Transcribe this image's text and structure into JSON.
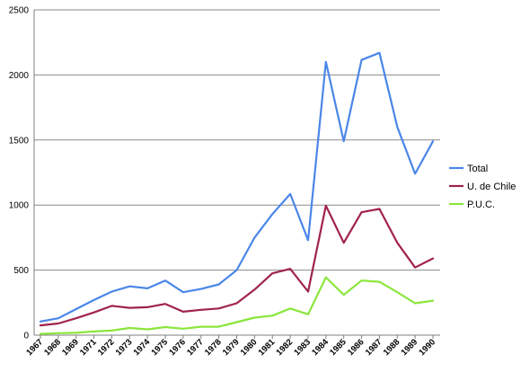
{
  "chart_data": {
    "type": "line",
    "title": "",
    "xlabel": "",
    "ylabel": "",
    "categories": [
      "1967",
      "1968",
      "1969",
      "1971",
      "1972",
      "1973",
      "1974",
      "1975",
      "1976",
      "1977",
      "1978",
      "1979",
      "1980",
      "1981",
      "1982",
      "1983",
      "1984",
      "1985",
      "1986",
      "1987",
      "1988",
      "1989",
      "1990"
    ],
    "ylim": [
      0,
      2500
    ],
    "yticks": [
      0,
      500,
      1000,
      1500,
      2000,
      2500
    ],
    "grid": "horizontal",
    "legend_position": "right",
    "series": [
      {
        "name": "Total",
        "color": "#4a86e8",
        "values": [
          105,
          130,
          200,
          270,
          335,
          375,
          360,
          420,
          330,
          355,
          390,
          500,
          750,
          930,
          1085,
          730,
          2100,
          1490,
          2115,
          2170,
          1600,
          1240,
          1490
        ]
      },
      {
        "name": "U. de Chile",
        "color": "#a0234b",
        "values": [
          75,
          90,
          130,
          175,
          225,
          210,
          215,
          240,
          180,
          195,
          205,
          245,
          350,
          475,
          510,
          335,
          995,
          710,
          945,
          970,
          710,
          520,
          590
        ]
      },
      {
        "name": "P.U.C.",
        "color": "#8be63c",
        "values": [
          10,
          15,
          18,
          28,
          35,
          55,
          45,
          62,
          50,
          65,
          65,
          100,
          135,
          150,
          205,
          160,
          445,
          310,
          420,
          410,
          330,
          245,
          265
        ]
      }
    ]
  }
}
